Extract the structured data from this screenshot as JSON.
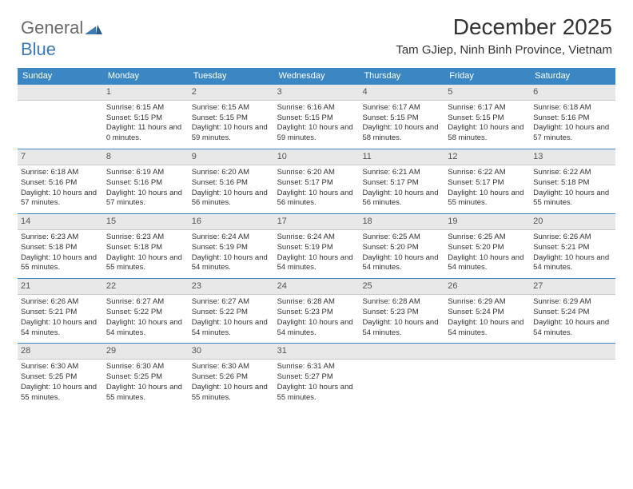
{
  "brand": {
    "word1": "General",
    "word2": "Blue"
  },
  "title": "December 2025",
  "subtitle": "Tam GJiep, Ninh Binh Province, Vietnam",
  "colors": {
    "header_bg": "#3a87c4",
    "header_fg": "#ffffff",
    "daynum_bg": "#e8e8e8",
    "divider": "#3a87c4",
    "text": "#333333"
  },
  "day_names": [
    "Sunday",
    "Monday",
    "Tuesday",
    "Wednesday",
    "Thursday",
    "Friday",
    "Saturday"
  ],
  "weeks": [
    [
      {
        "n": "",
        "sunrise": "",
        "sunset": "",
        "daylight": ""
      },
      {
        "n": "1",
        "sunrise": "6:15 AM",
        "sunset": "5:15 PM",
        "daylight": "11 hours and 0 minutes."
      },
      {
        "n": "2",
        "sunrise": "6:15 AM",
        "sunset": "5:15 PM",
        "daylight": "10 hours and 59 minutes."
      },
      {
        "n": "3",
        "sunrise": "6:16 AM",
        "sunset": "5:15 PM",
        "daylight": "10 hours and 59 minutes."
      },
      {
        "n": "4",
        "sunrise": "6:17 AM",
        "sunset": "5:15 PM",
        "daylight": "10 hours and 58 minutes."
      },
      {
        "n": "5",
        "sunrise": "6:17 AM",
        "sunset": "5:15 PM",
        "daylight": "10 hours and 58 minutes."
      },
      {
        "n": "6",
        "sunrise": "6:18 AM",
        "sunset": "5:16 PM",
        "daylight": "10 hours and 57 minutes."
      }
    ],
    [
      {
        "n": "7",
        "sunrise": "6:18 AM",
        "sunset": "5:16 PM",
        "daylight": "10 hours and 57 minutes."
      },
      {
        "n": "8",
        "sunrise": "6:19 AM",
        "sunset": "5:16 PM",
        "daylight": "10 hours and 57 minutes."
      },
      {
        "n": "9",
        "sunrise": "6:20 AM",
        "sunset": "5:16 PM",
        "daylight": "10 hours and 56 minutes."
      },
      {
        "n": "10",
        "sunrise": "6:20 AM",
        "sunset": "5:17 PM",
        "daylight": "10 hours and 56 minutes."
      },
      {
        "n": "11",
        "sunrise": "6:21 AM",
        "sunset": "5:17 PM",
        "daylight": "10 hours and 56 minutes."
      },
      {
        "n": "12",
        "sunrise": "6:22 AM",
        "sunset": "5:17 PM",
        "daylight": "10 hours and 55 minutes."
      },
      {
        "n": "13",
        "sunrise": "6:22 AM",
        "sunset": "5:18 PM",
        "daylight": "10 hours and 55 minutes."
      }
    ],
    [
      {
        "n": "14",
        "sunrise": "6:23 AM",
        "sunset": "5:18 PM",
        "daylight": "10 hours and 55 minutes."
      },
      {
        "n": "15",
        "sunrise": "6:23 AM",
        "sunset": "5:18 PM",
        "daylight": "10 hours and 55 minutes."
      },
      {
        "n": "16",
        "sunrise": "6:24 AM",
        "sunset": "5:19 PM",
        "daylight": "10 hours and 54 minutes."
      },
      {
        "n": "17",
        "sunrise": "6:24 AM",
        "sunset": "5:19 PM",
        "daylight": "10 hours and 54 minutes."
      },
      {
        "n": "18",
        "sunrise": "6:25 AM",
        "sunset": "5:20 PM",
        "daylight": "10 hours and 54 minutes."
      },
      {
        "n": "19",
        "sunrise": "6:25 AM",
        "sunset": "5:20 PM",
        "daylight": "10 hours and 54 minutes."
      },
      {
        "n": "20",
        "sunrise": "6:26 AM",
        "sunset": "5:21 PM",
        "daylight": "10 hours and 54 minutes."
      }
    ],
    [
      {
        "n": "21",
        "sunrise": "6:26 AM",
        "sunset": "5:21 PM",
        "daylight": "10 hours and 54 minutes."
      },
      {
        "n": "22",
        "sunrise": "6:27 AM",
        "sunset": "5:22 PM",
        "daylight": "10 hours and 54 minutes."
      },
      {
        "n": "23",
        "sunrise": "6:27 AM",
        "sunset": "5:22 PM",
        "daylight": "10 hours and 54 minutes."
      },
      {
        "n": "24",
        "sunrise": "6:28 AM",
        "sunset": "5:23 PM",
        "daylight": "10 hours and 54 minutes."
      },
      {
        "n": "25",
        "sunrise": "6:28 AM",
        "sunset": "5:23 PM",
        "daylight": "10 hours and 54 minutes."
      },
      {
        "n": "26",
        "sunrise": "6:29 AM",
        "sunset": "5:24 PM",
        "daylight": "10 hours and 54 minutes."
      },
      {
        "n": "27",
        "sunrise": "6:29 AM",
        "sunset": "5:24 PM",
        "daylight": "10 hours and 54 minutes."
      }
    ],
    [
      {
        "n": "28",
        "sunrise": "6:30 AM",
        "sunset": "5:25 PM",
        "daylight": "10 hours and 55 minutes."
      },
      {
        "n": "29",
        "sunrise": "6:30 AM",
        "sunset": "5:25 PM",
        "daylight": "10 hours and 55 minutes."
      },
      {
        "n": "30",
        "sunrise": "6:30 AM",
        "sunset": "5:26 PM",
        "daylight": "10 hours and 55 minutes."
      },
      {
        "n": "31",
        "sunrise": "6:31 AM",
        "sunset": "5:27 PM",
        "daylight": "10 hours and 55 minutes."
      },
      {
        "n": "",
        "sunrise": "",
        "sunset": "",
        "daylight": ""
      },
      {
        "n": "",
        "sunrise": "",
        "sunset": "",
        "daylight": ""
      },
      {
        "n": "",
        "sunrise": "",
        "sunset": "",
        "daylight": ""
      }
    ]
  ],
  "labels": {
    "sunrise": "Sunrise:",
    "sunset": "Sunset:",
    "daylight": "Daylight:"
  }
}
